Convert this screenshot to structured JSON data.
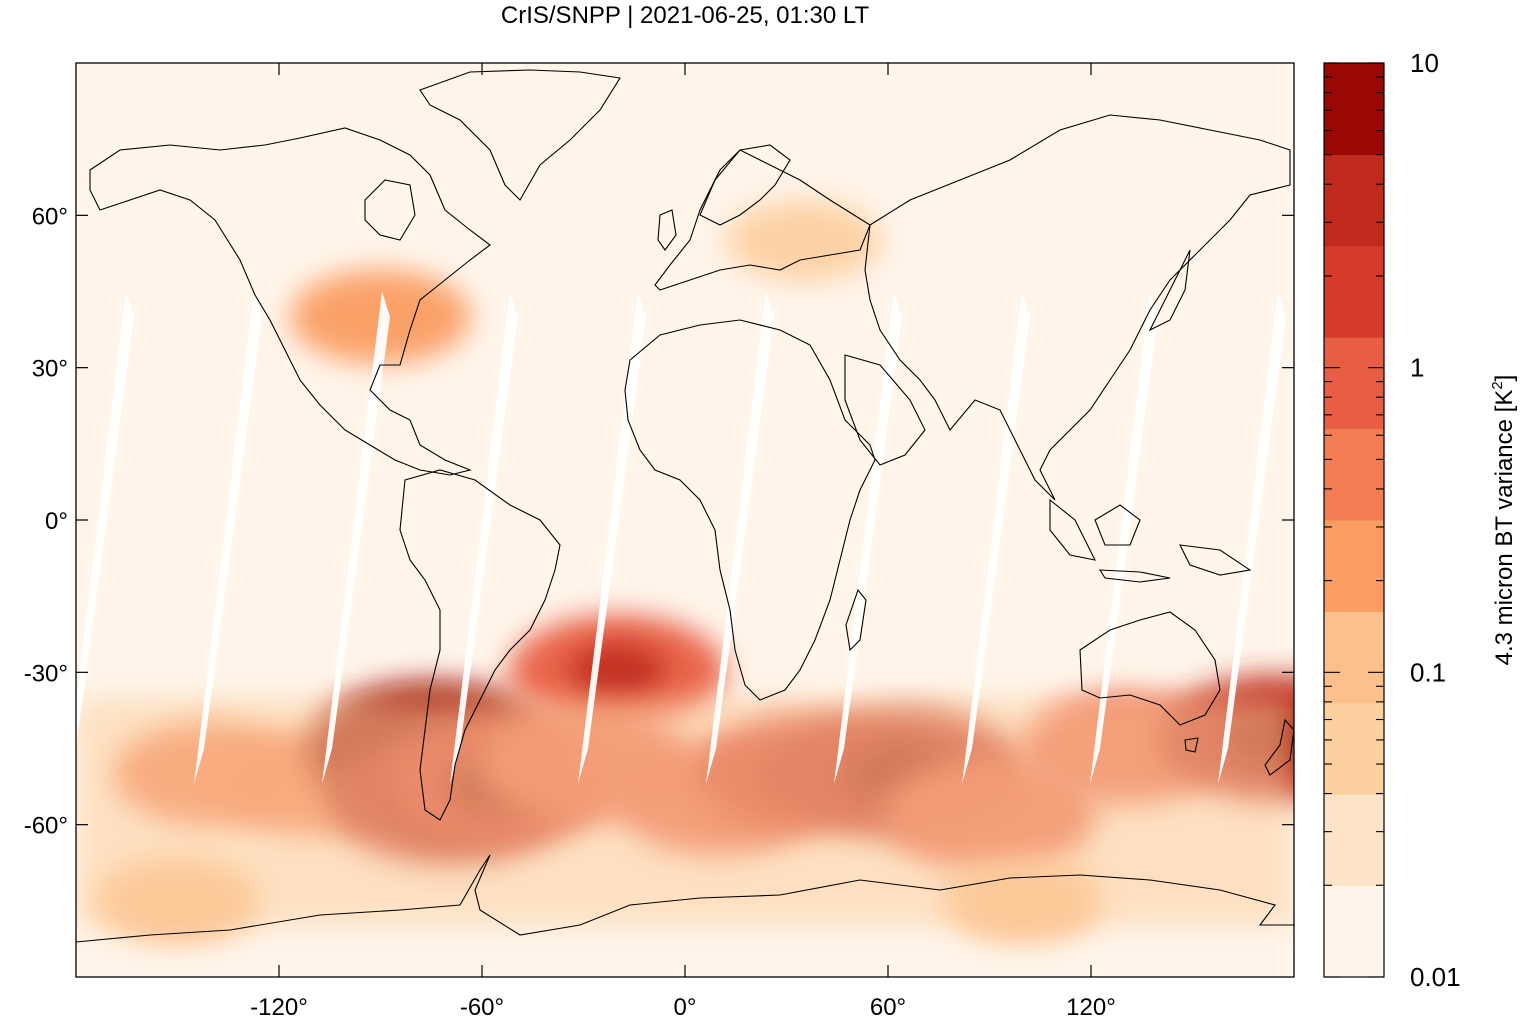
{
  "chart_data": {
    "type": "heatmap",
    "title": "CrIS/SNPP | 2021-06-25, 01:30 LT",
    "xlabel": "",
    "ylabel": "",
    "xlim": [
      -180,
      180
    ],
    "ylim": [
      -90,
      90
    ],
    "x_ticks": [
      -120,
      -60,
      0,
      60,
      120
    ],
    "x_tick_labels": [
      "-120°",
      "-60°",
      "0°",
      "60°",
      "120°"
    ],
    "y_ticks": [
      60,
      30,
      0,
      -30,
      -60
    ],
    "y_tick_labels": [
      "60°",
      "30°",
      "0°",
      "-30°",
      "-60°"
    ],
    "grid": false,
    "colorbar": {
      "label_main": "4.3 micron BT variance [K",
      "label_sup": "2",
      "label_end": "]",
      "scale": "log",
      "range": [
        0.01,
        10
      ],
      "tick_values": [
        10,
        1,
        0.1,
        0.01
      ],
      "tick_labels": [
        "10",
        "1",
        "0.1",
        "0.01"
      ],
      "colors": [
        "#fff5eb",
        "#fee6ce",
        "#fdd0a2",
        "#fdae6b",
        "#fd8d3c",
        "#f16913",
        "#e34a33",
        "#d7301f",
        "#b30000",
        "#7f0000"
      ],
      "display_colors": [
        "#fff5eb",
        "#fde4c8",
        "#fdd0a0",
        "#fcc08c",
        "#fa9d62",
        "#f27d52",
        "#e85e44",
        "#d63a2a",
        "#c02a1c",
        "#9a0805"
      ]
    },
    "field": {
      "background_value": 0.012,
      "blobs": [
        {
          "lon": -140,
          "lat": -50,
          "value": 0.4
        },
        {
          "lon": -110,
          "lat": -52,
          "value": 0.35
        },
        {
          "lon": -75,
          "lat": -45,
          "value": 6
        },
        {
          "lon": -70,
          "lat": -55,
          "value": 4
        },
        {
          "lon": -55,
          "lat": -52,
          "value": 2
        },
        {
          "lon": -30,
          "lat": -48,
          "value": 1
        },
        {
          "lon": -20,
          "lat": -30,
          "value": 1.2
        },
        {
          "lon": 10,
          "lat": -55,
          "value": 0.8
        },
        {
          "lon": 35,
          "lat": -50,
          "value": 1.5
        },
        {
          "lon": 65,
          "lat": -50,
          "value": 4
        },
        {
          "lon": 90,
          "lat": -58,
          "value": 1
        },
        {
          "lon": 130,
          "lat": -45,
          "value": 0.8
        },
        {
          "lon": 175,
          "lat": -43,
          "value": 3
        },
        {
          "lon": -90,
          "lat": 40,
          "value": 0.2
        },
        {
          "lon": 35,
          "lat": 55,
          "value": 0.06
        },
        {
          "lon": -150,
          "lat": -75,
          "value": 0.1
        },
        {
          "lon": 100,
          "lat": -75,
          "value": 0.08
        }
      ]
    },
    "map": {
      "coastlines": true
    }
  }
}
